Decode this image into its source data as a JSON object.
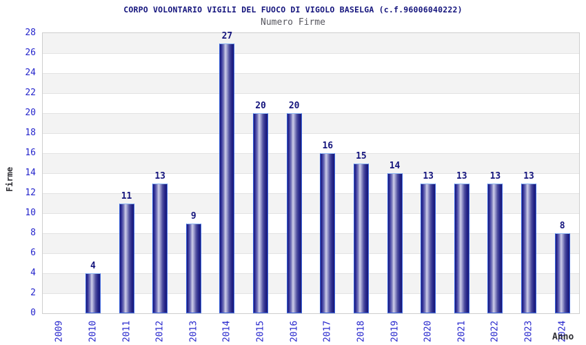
{
  "chart_data": {
    "type": "bar",
    "title": "CORPO VOLONTARIO VIGILI DEL FUOCO DI VIGOLO BASELGA (c.f.96006040222)",
    "subtitle": "Numero Firme",
    "xlabel": "Anno",
    "ylabel": "Firme",
    "categories": [
      "2009",
      "2010",
      "2011",
      "2012",
      "2013",
      "2014",
      "2015",
      "2016",
      "2017",
      "2018",
      "2019",
      "2020",
      "2021",
      "2022",
      "2023",
      "2024"
    ],
    "values": [
      0,
      4,
      11,
      13,
      9,
      27,
      20,
      20,
      16,
      15,
      14,
      13,
      13,
      13,
      13,
      8
    ],
    "ylim": [
      0,
      28
    ],
    "ytick_step": 2,
    "grid": true,
    "legend": false,
    "alternating_bands": true,
    "bar_value_labels_shown_for_nonzero_only": true
  },
  "colors": {
    "background": "#ffffff",
    "title": "#15157d",
    "subtitle": "#56565e",
    "tick_label": "#2424cc",
    "value_label": "#15157d",
    "axis_title": "#2e2e34",
    "band_gray": "#f3f3f3",
    "grid_line": "#e2e2e2",
    "plot_border": "#cdcdcd",
    "bar_dark": "#181874",
    "bar_light": "#cfcfe9",
    "bar_border": "#3c66de",
    "bar_border_top": "#8ab5f2"
  }
}
